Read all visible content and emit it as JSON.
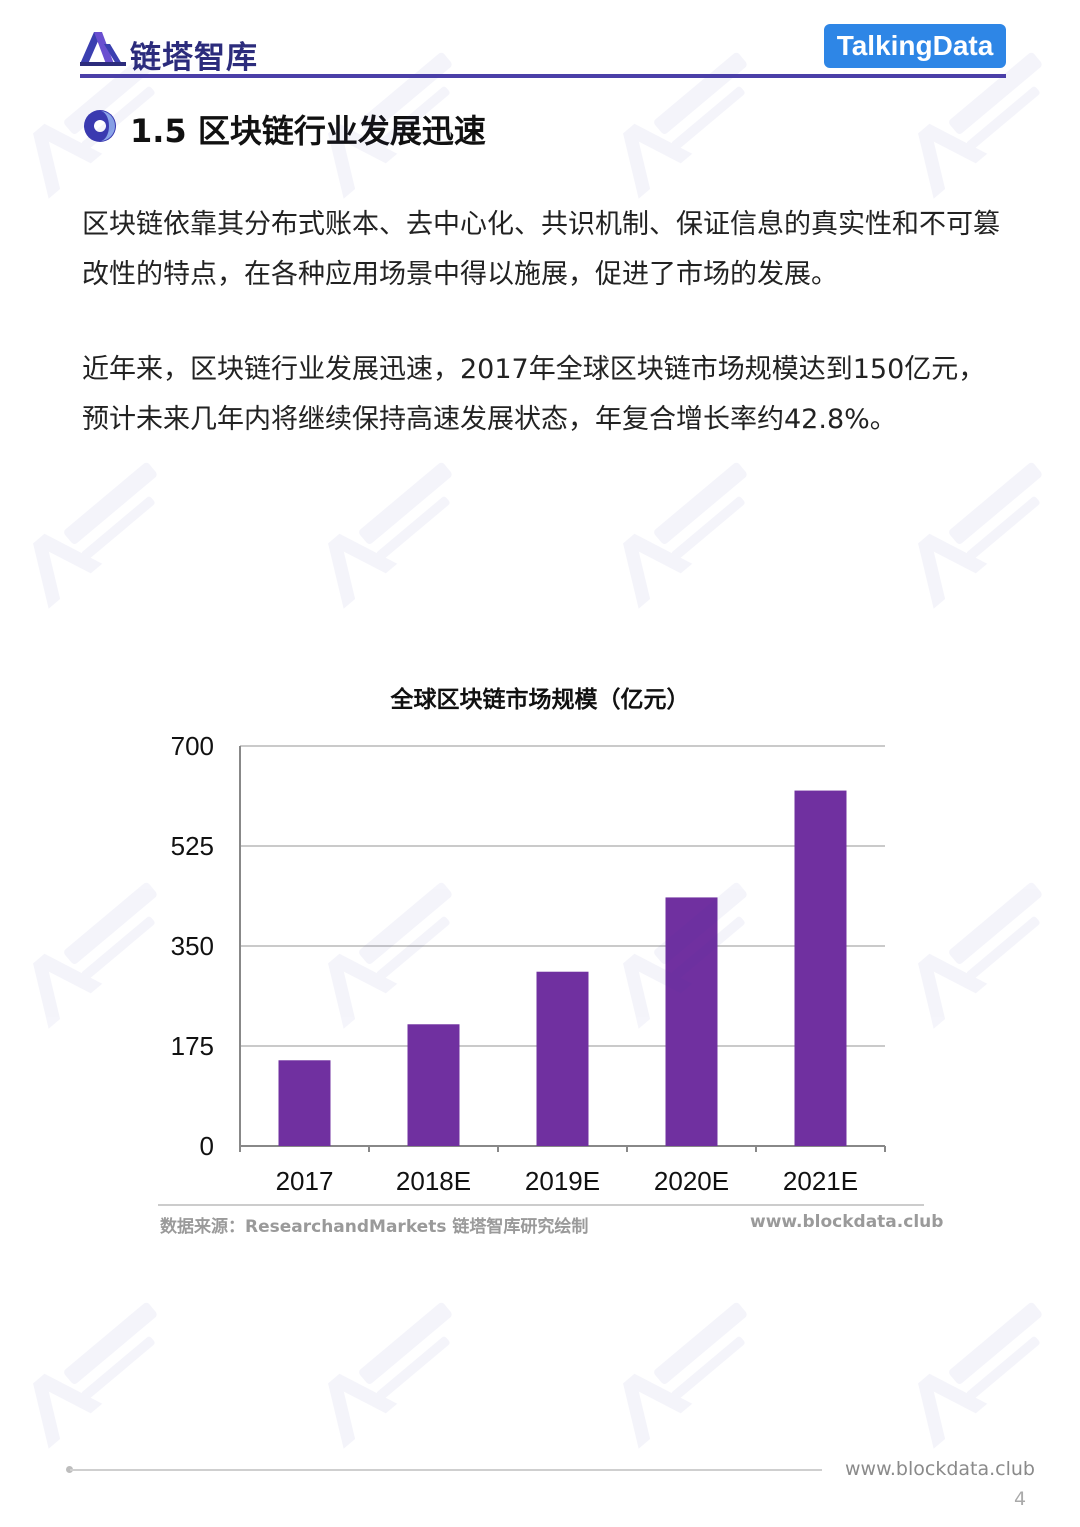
{
  "header": {
    "brand_name": "链塔智库",
    "partner_name": "TalkingData"
  },
  "section": {
    "title": "1.5 区块链行业发展迅速"
  },
  "paragraphs": [
    "区块链依靠其分布式账本、去中心化、共识机制、保证信息的真实性和不可篡改性的特点，在各种应用场景中得以施展，促进了市场的发展。",
    "近年来，区块链行业发展迅速，2017年全球区块链市场规模达到150亿元，预计未来几年内将继续保持高速发展状态，年复合增长率约42.8%。"
  ],
  "chart_data": {
    "type": "bar",
    "title": "全球区块链市场规模（亿元）",
    "categories": [
      "2017",
      "2018E",
      "2019E",
      "2020E",
      "2021E"
    ],
    "values": [
      150,
      213,
      305,
      435,
      622
    ],
    "ylim": [
      0,
      700
    ],
    "yticks": [
      0,
      175,
      350,
      525,
      700
    ],
    "grid": true,
    "bar_color": "#7030a0"
  },
  "source": {
    "text": "数据来源：ResearchandMarkets 链塔智库研究绘制",
    "url": "www.blockdata.club"
  },
  "footer": {
    "url": "www.blockdata.club",
    "page_number": "4"
  },
  "colors": {
    "brand": "#2c2c7c",
    "accent": "#4b3fa8",
    "partner": "#2e86e6"
  }
}
